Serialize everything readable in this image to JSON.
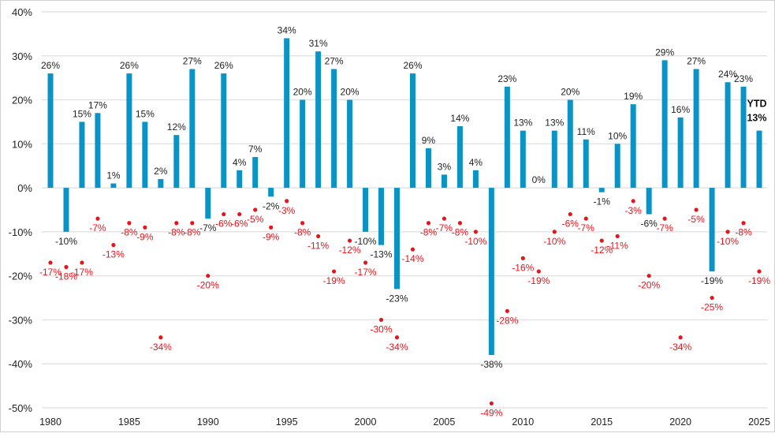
{
  "chart_data": {
    "type": "bar",
    "title": "",
    "xlabel": "",
    "ylabel": "",
    "ylim": [
      -50,
      40
    ],
    "yticks": [
      40,
      30,
      20,
      10,
      0,
      -10,
      -20,
      -30,
      -40,
      -50
    ],
    "ytick_labels": [
      "40%",
      "30%",
      "20%",
      "10%",
      "0%",
      "-10%",
      "-20%",
      "-30%",
      "-40%",
      "-50%"
    ],
    "xtick_labels": [
      "1980",
      "1985",
      "1990",
      "1995",
      "2000",
      "2005",
      "2010",
      "2015",
      "2020",
      "2025"
    ],
    "grid": true,
    "x": [
      1980,
      1981,
      1982,
      1983,
      1984,
      1985,
      1986,
      1987,
      1988,
      1989,
      1990,
      1991,
      1992,
      1993,
      1994,
      1995,
      1996,
      1997,
      1998,
      1999,
      2000,
      2001,
      2002,
      2003,
      2004,
      2005,
      2006,
      2007,
      2008,
      2009,
      2010,
      2011,
      2012,
      2013,
      2014,
      2015,
      2016,
      2017,
      2018,
      2019,
      2020,
      2021,
      2022,
      2023,
      2024,
      2025
    ],
    "series": [
      {
        "type": "bar",
        "color": "#0b93c6",
        "label_color": "#222222",
        "values": [
          26,
          -10,
          15,
          17,
          1,
          26,
          15,
          2,
          12,
          27,
          -7,
          26,
          4,
          7,
          -2,
          34,
          20,
          31,
          27,
          20,
          -10,
          -13,
          -23,
          26,
          9,
          3,
          14,
          4,
          -38,
          23,
          13,
          0,
          13,
          20,
          11,
          -1,
          10,
          19,
          -6,
          29,
          16,
          27,
          -19,
          24,
          23,
          13
        ]
      },
      {
        "type": "scatter",
        "color": "#e8141c",
        "label_color": "#e8141c",
        "values": [
          -17,
          -18,
          -17,
          -7,
          -13,
          -8,
          -9,
          -34,
          -8,
          -8,
          -20,
          -6,
          -6,
          -5,
          -9,
          -3,
          -8,
          -11,
          -19,
          -12,
          -17,
          -30,
          -34,
          -14,
          -8,
          -7,
          -8,
          -10,
          -49,
          -28,
          -16,
          -19,
          -10,
          -6,
          -7,
          -12,
          -11,
          -3,
          -20,
          -7,
          -34,
          -5,
          -25,
          -10,
          -8,
          -19
        ]
      }
    ],
    "annotations": [
      {
        "text": "YTD",
        "year": 2025
      }
    ]
  }
}
